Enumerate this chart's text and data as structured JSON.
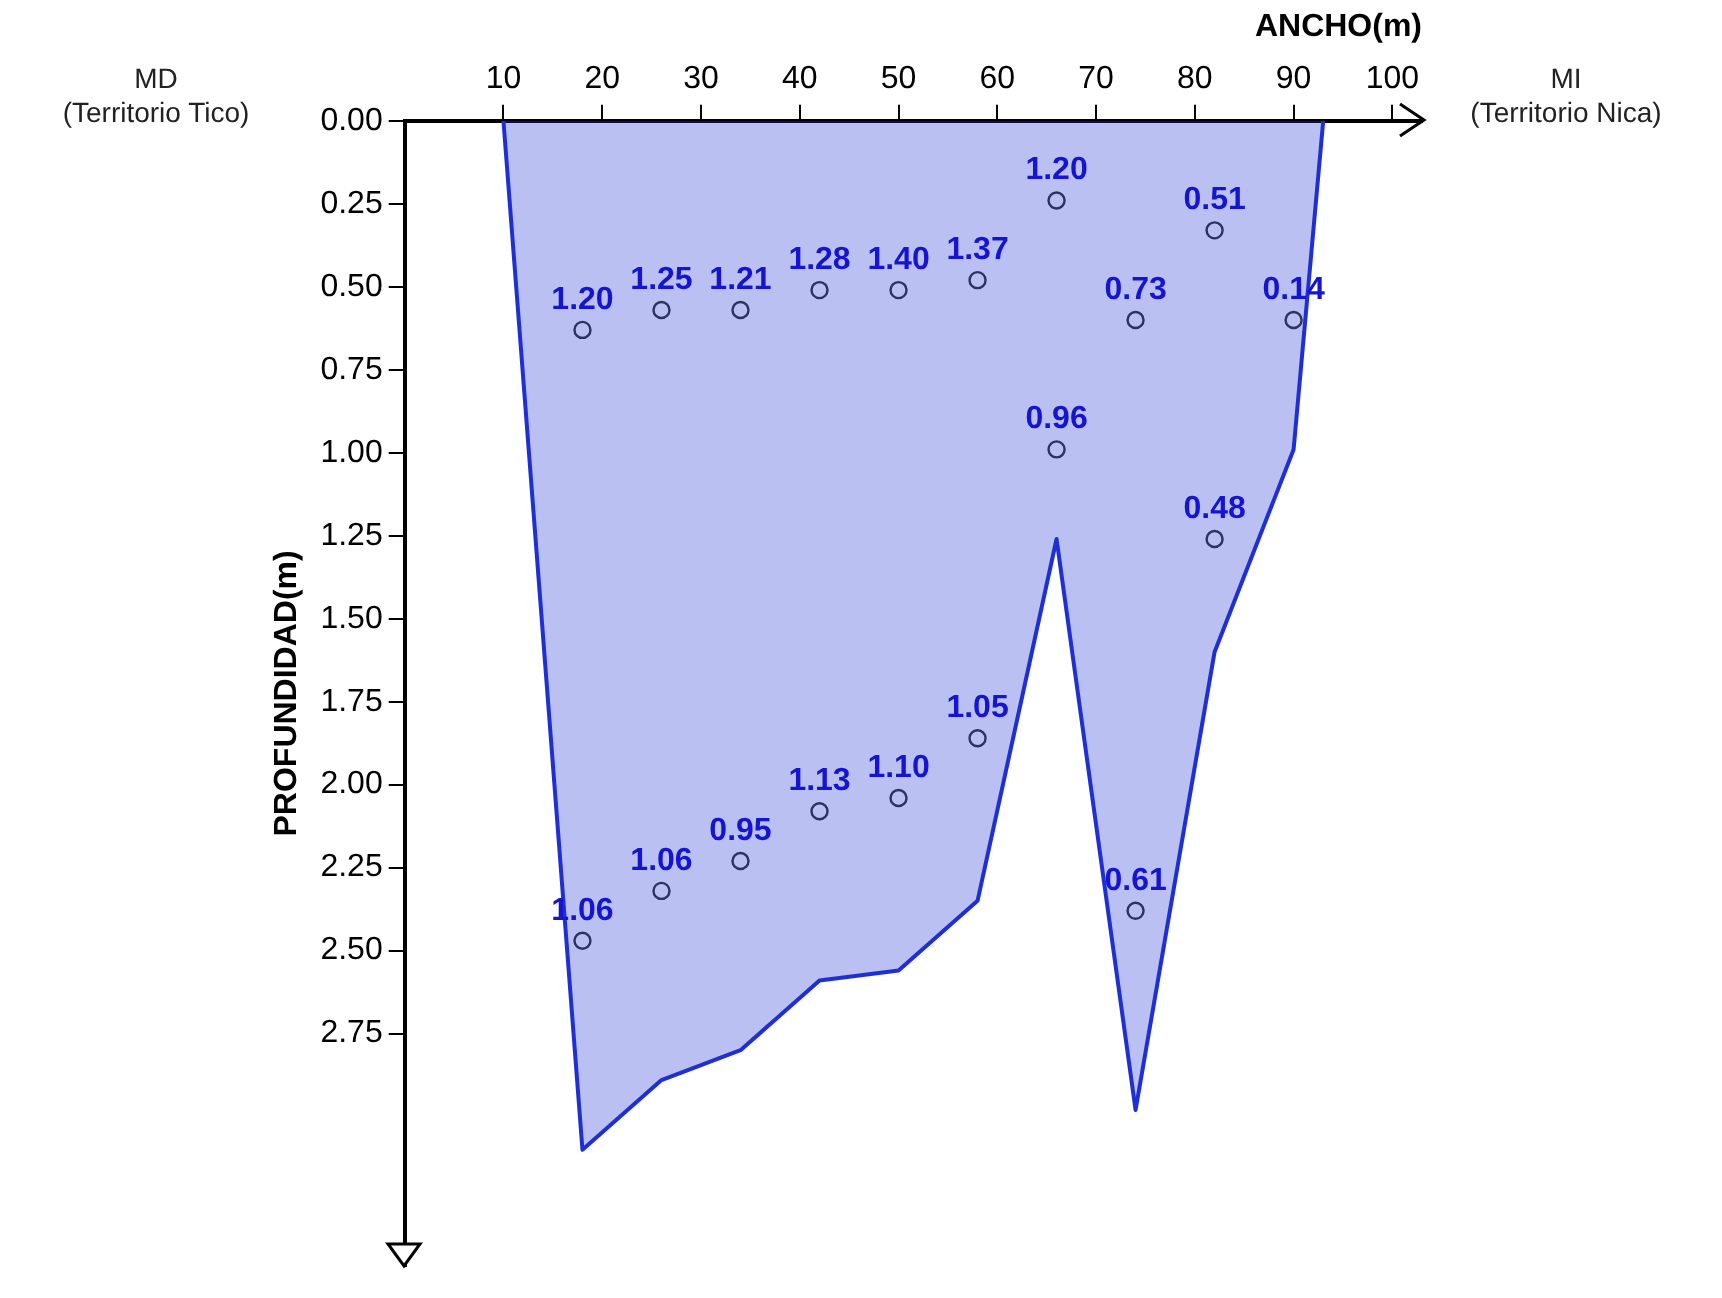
{
  "chart_data": {
    "type": "scatter",
    "xlabel": "ANCHO(m)",
    "ylabel": "PROFUNDIDAD(m)",
    "annotations": [
      "MD\n(Territorio Tico)",
      "MI\n(Territorio Nica)",
      {
        "text": "1.20",
        "x": 18,
        "y": 0.63
      },
      {
        "text": "1.25",
        "x": 26,
        "y": 0.57
      },
      {
        "text": "1.21",
        "x": 34,
        "y": 0.57
      },
      {
        "text": "1.28",
        "x": 42,
        "y": 0.51
      },
      {
        "text": "1.40",
        "x": 50,
        "y": 0.51
      },
      {
        "text": "1.37",
        "x": 58,
        "y": 0.48
      },
      {
        "text": "1.20",
        "x": 66,
        "y": 0.24
      },
      {
        "text": "0.51",
        "x": 82,
        "y": 0.33
      },
      {
        "text": "0.73",
        "x": 74,
        "y": 0.6
      },
      {
        "text": "0.14",
        "x": 90,
        "y": 0.6
      },
      {
        "text": "0.96",
        "x": 66,
        "y": 0.99
      },
      {
        "text": "0.48",
        "x": 82,
        "y": 1.26
      },
      {
        "text": "1.06",
        "x": 18,
        "y": 2.47
      },
      {
        "text": "1.06",
        "x": 26,
        "y": 2.32
      },
      {
        "text": "0.95",
        "x": 34,
        "y": 2.23
      },
      {
        "text": "1.13",
        "x": 42,
        "y": 2.08
      },
      {
        "text": "1.10",
        "x": 50,
        "y": 2.04
      },
      {
        "text": "1.05",
        "x": 58,
        "y": 1.86
      },
      {
        "text": "0.61",
        "x": 74,
        "y": 2.38
      }
    ],
    "xlim": [
      0,
      103
    ],
    "xticks": [
      10,
      20,
      30,
      40,
      50,
      60,
      70,
      80,
      90,
      100
    ],
    "ylim": [
      3.45,
      0
    ],
    "yticks": [
      {
        "value": 0,
        "label": "0.00"
      },
      {
        "value": 0.25,
        "label": "0.25"
      },
      {
        "value": 0.5,
        "label": "0.50"
      },
      {
        "value": 0.75,
        "label": "0.75"
      },
      {
        "value": 1,
        "label": "1.00"
      },
      {
        "value": 1.25,
        "label": "1.25"
      },
      {
        "value": 1.5,
        "label": "1.50"
      },
      {
        "value": 1.75,
        "label": "1.75"
      },
      {
        "value": 2,
        "label": "2.00"
      },
      {
        "value": 2.25,
        "label": "2.25"
      },
      {
        "value": 2.5,
        "label": "2.50"
      },
      {
        "value": 2.75,
        "label": "2.75"
      }
    ],
    "grid": false,
    "legend": false,
    "series": [
      {
        "type": "area",
        "color": "#1f2fd6",
        "x": [
          10,
          18,
          26,
          34,
          42,
          50,
          58,
          66,
          74,
          82,
          90,
          93
        ],
        "values": [
          0,
          3.1,
          2.89,
          2.8,
          2.59,
          2.56,
          2.35,
          1.26,
          2.98,
          1.6,
          0.99,
          0
        ]
      },
      {
        "color": "#333333",
        "marker": "circle",
        "x": [
          18,
          26,
          34,
          42,
          50,
          58,
          66,
          82,
          74,
          90,
          66,
          82,
          18,
          26,
          34,
          42,
          50,
          58,
          74
        ],
        "values": [
          0.63,
          0.57,
          0.57,
          0.51,
          0.51,
          0.48,
          0.24,
          0.33,
          0.6,
          0.6,
          0.99,
          1.26,
          2.47,
          2.32,
          2.23,
          2.08,
          2.04,
          1.86,
          2.38
        ]
      }
    ]
  }
}
